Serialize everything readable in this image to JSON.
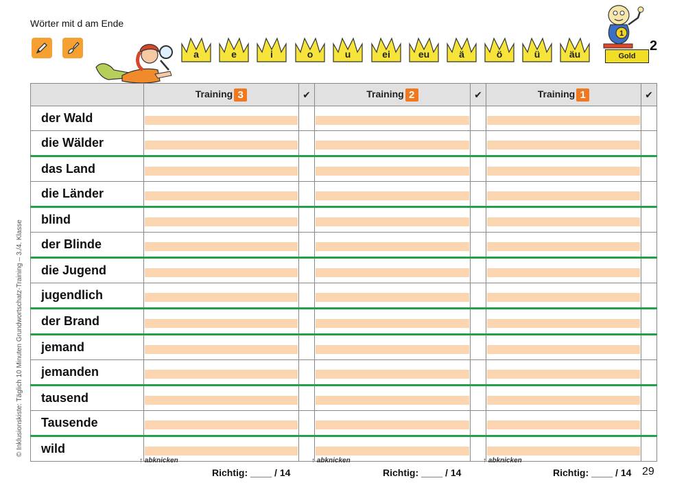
{
  "header": {
    "title": "Wörter mit d am Ende",
    "crowns": [
      "a",
      "e",
      "i",
      "o",
      "u",
      "ei",
      "eu",
      "ä",
      "ö",
      "ü",
      "äu"
    ],
    "level_label": "Gold",
    "level_number": "2",
    "medal_number": "1"
  },
  "table": {
    "columns": [
      {
        "label": "Training",
        "number": "3"
      },
      {
        "label": "Training",
        "number": "2"
      },
      {
        "label": "Training",
        "number": "1"
      }
    ],
    "check_symbol": "✔",
    "words": [
      "der Wald",
      "die Wälder",
      "das Land",
      "die Länder",
      "blind",
      "der Blinde",
      "die Jugend",
      "jugendlich",
      "der Brand",
      "jemand",
      "jemanden",
      "tausend",
      "Tausende",
      "wild"
    ]
  },
  "footer": {
    "abknicken": "abknicken",
    "richtig_label": "Richtig:",
    "richtig_blank": "____",
    "richtig_total": "/ 14",
    "page_number": "29"
  },
  "side_text": "© Inklusionskiste: Täglich 10 Minuten Grundwortschatz-Training – 3./4. Klasse",
  "colors": {
    "accent_orange": "#f0781e",
    "write_line": "#fbd5b0",
    "separator_green": "#22a04a",
    "crown_yellow": "#f7e43a",
    "gold": "#f2de25"
  }
}
